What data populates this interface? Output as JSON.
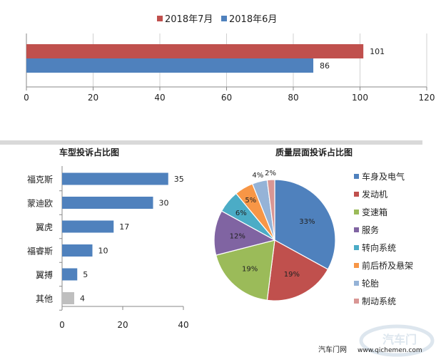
{
  "chart_data": [
    {
      "type": "bar",
      "orientation": "horizontal",
      "title": "",
      "categories": [
        ""
      ],
      "series": [
        {
          "name": "2018年7月",
          "values": [
            101
          ],
          "color": "#C0504D"
        },
        {
          "name": "2018年6月",
          "values": [
            86
          ],
          "color": "#4F81BD"
        }
      ],
      "xlim": [
        0,
        120
      ],
      "xticks": [
        "0",
        "20",
        "40",
        "60",
        "80",
        "100",
        "120"
      ],
      "legend": "top-center"
    },
    {
      "type": "bar",
      "orientation": "horizontal",
      "title": "车型投诉占比图",
      "categories": [
        "福克斯",
        "蒙迪欧",
        "翼虎",
        "福睿斯",
        "翼搏",
        "其他"
      ],
      "values": [
        35,
        30,
        17,
        10,
        5,
        4
      ],
      "colors": [
        "#4F81BD",
        "#4F81BD",
        "#4F81BD",
        "#4F81BD",
        "#4F81BD",
        "#BFBFBF"
      ],
      "xlim": [
        0,
        40
      ],
      "xticks": [
        "0",
        "20",
        "40"
      ]
    },
    {
      "type": "pie",
      "title": "质量层面投诉占比图",
      "labels": [
        "车身及电气",
        "发动机",
        "变速箱",
        "服务",
        "转向系统",
        "前后桥及悬架",
        "轮胎",
        "制动系统"
      ],
      "values": [
        33,
        19,
        19,
        12,
        6,
        5,
        4,
        2
      ],
      "value_labels": [
        "33%",
        "19%",
        "19%",
        "12%",
        "6%",
        "5%",
        "4%",
        "2%"
      ],
      "colors": [
        "#4F81BD",
        "#C0504D",
        "#9BBB59",
        "#8064A2",
        "#4BACC6",
        "#F79646",
        "#95B3D7",
        "#D99694"
      ],
      "legend": "right"
    }
  ],
  "watermark": {
    "source": "汽车门网",
    "url": "www.qichemen.com",
    "logo_text": "汽车门"
  }
}
